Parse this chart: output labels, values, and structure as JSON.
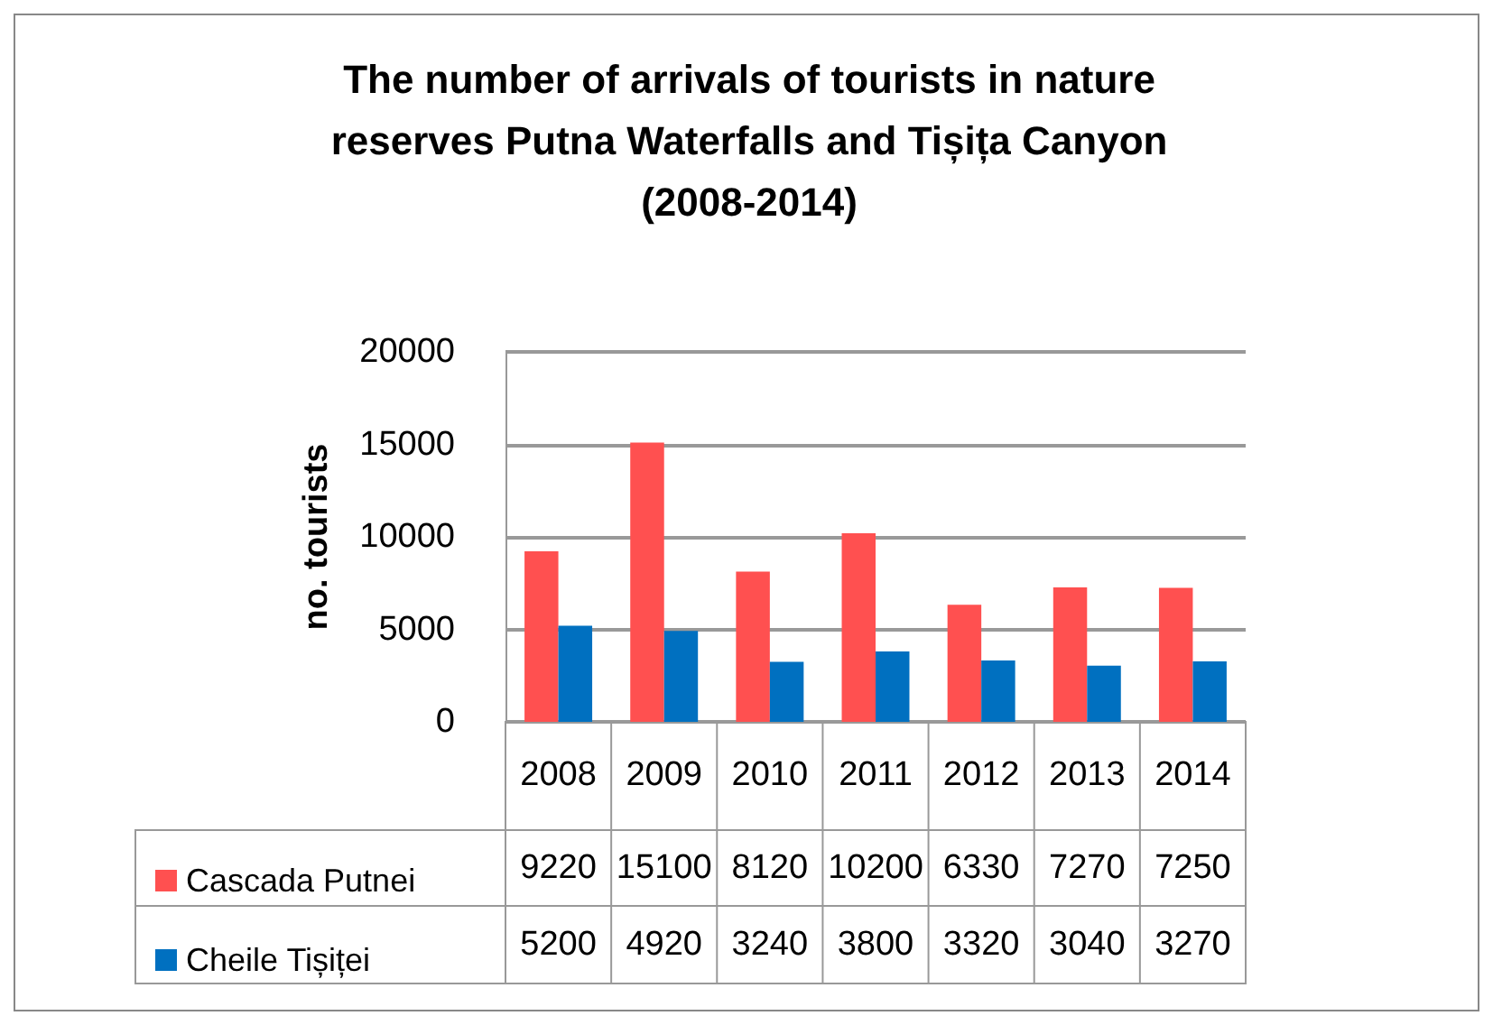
{
  "chart_data": {
    "type": "bar",
    "title": "The number of arrivals of tourists in nature\nreserves Putna Waterfalls and Tișița Canyon\n(2008-2014)",
    "ylabel": "no. tourists",
    "categories": [
      "2008",
      "2009",
      "2010",
      "2011",
      "2012",
      "2013",
      "2014"
    ],
    "series": [
      {
        "name": "Cascada Putnei",
        "color": "#ff5050",
        "values": [
          9220,
          15100,
          8120,
          10200,
          6330,
          7270,
          7250
        ]
      },
      {
        "name": "Cheile Tișiței",
        "color": "#0070c0",
        "values": [
          5200,
          4920,
          3240,
          3800,
          3320,
          3040,
          3270
        ]
      }
    ],
    "ylim": [
      0,
      20000
    ],
    "yticks": [
      0,
      5000,
      10000,
      15000,
      20000
    ],
    "grid": "y",
    "legend": "bottom",
    "data_labels": true
  }
}
